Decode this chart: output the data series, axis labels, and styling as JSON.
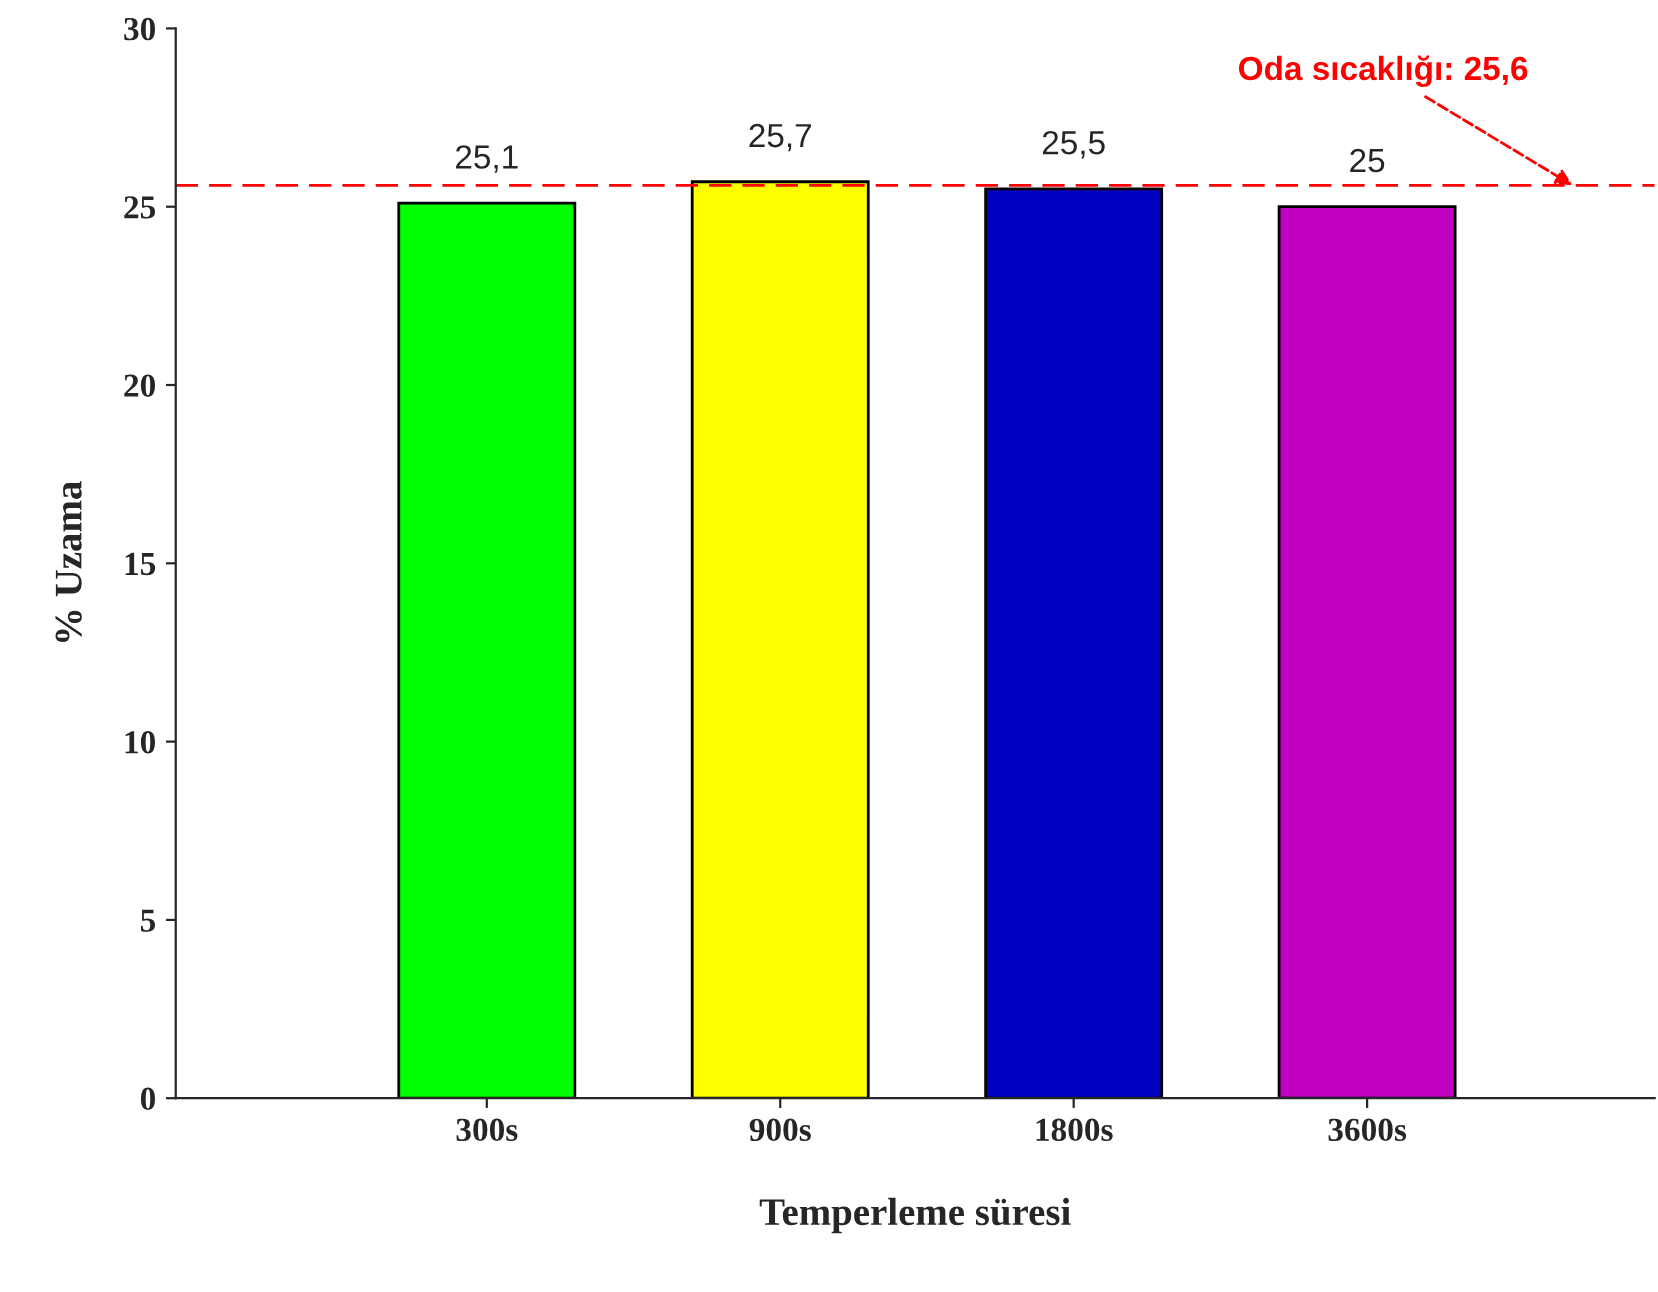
{
  "chart_data": {
    "type": "bar",
    "xlabel": "Temperleme süresi",
    "ylabel": "% Uzama",
    "categories": [
      "300s",
      "900s",
      "1800s",
      "3600s"
    ],
    "values": [
      25.1,
      25.7,
      25.5,
      25
    ],
    "colors": [
      "#00ff00",
      "#ffff00",
      "#0000c0",
      "#c000c0"
    ],
    "value_labels": [
      "25,1",
      "25,7",
      "25,5",
      "25"
    ],
    "ylim": [
      0,
      30
    ],
    "yticks": [
      0,
      5,
      10,
      15,
      20,
      25,
      30
    ],
    "ref_lines": [
      {
        "axis": "y",
        "value": 25.6,
        "label": "Oda sıcaklığı: 25,6",
        "color": "#ff0000",
        "line_style": "dashed"
      }
    ],
    "grid": false,
    "legend": false
  }
}
